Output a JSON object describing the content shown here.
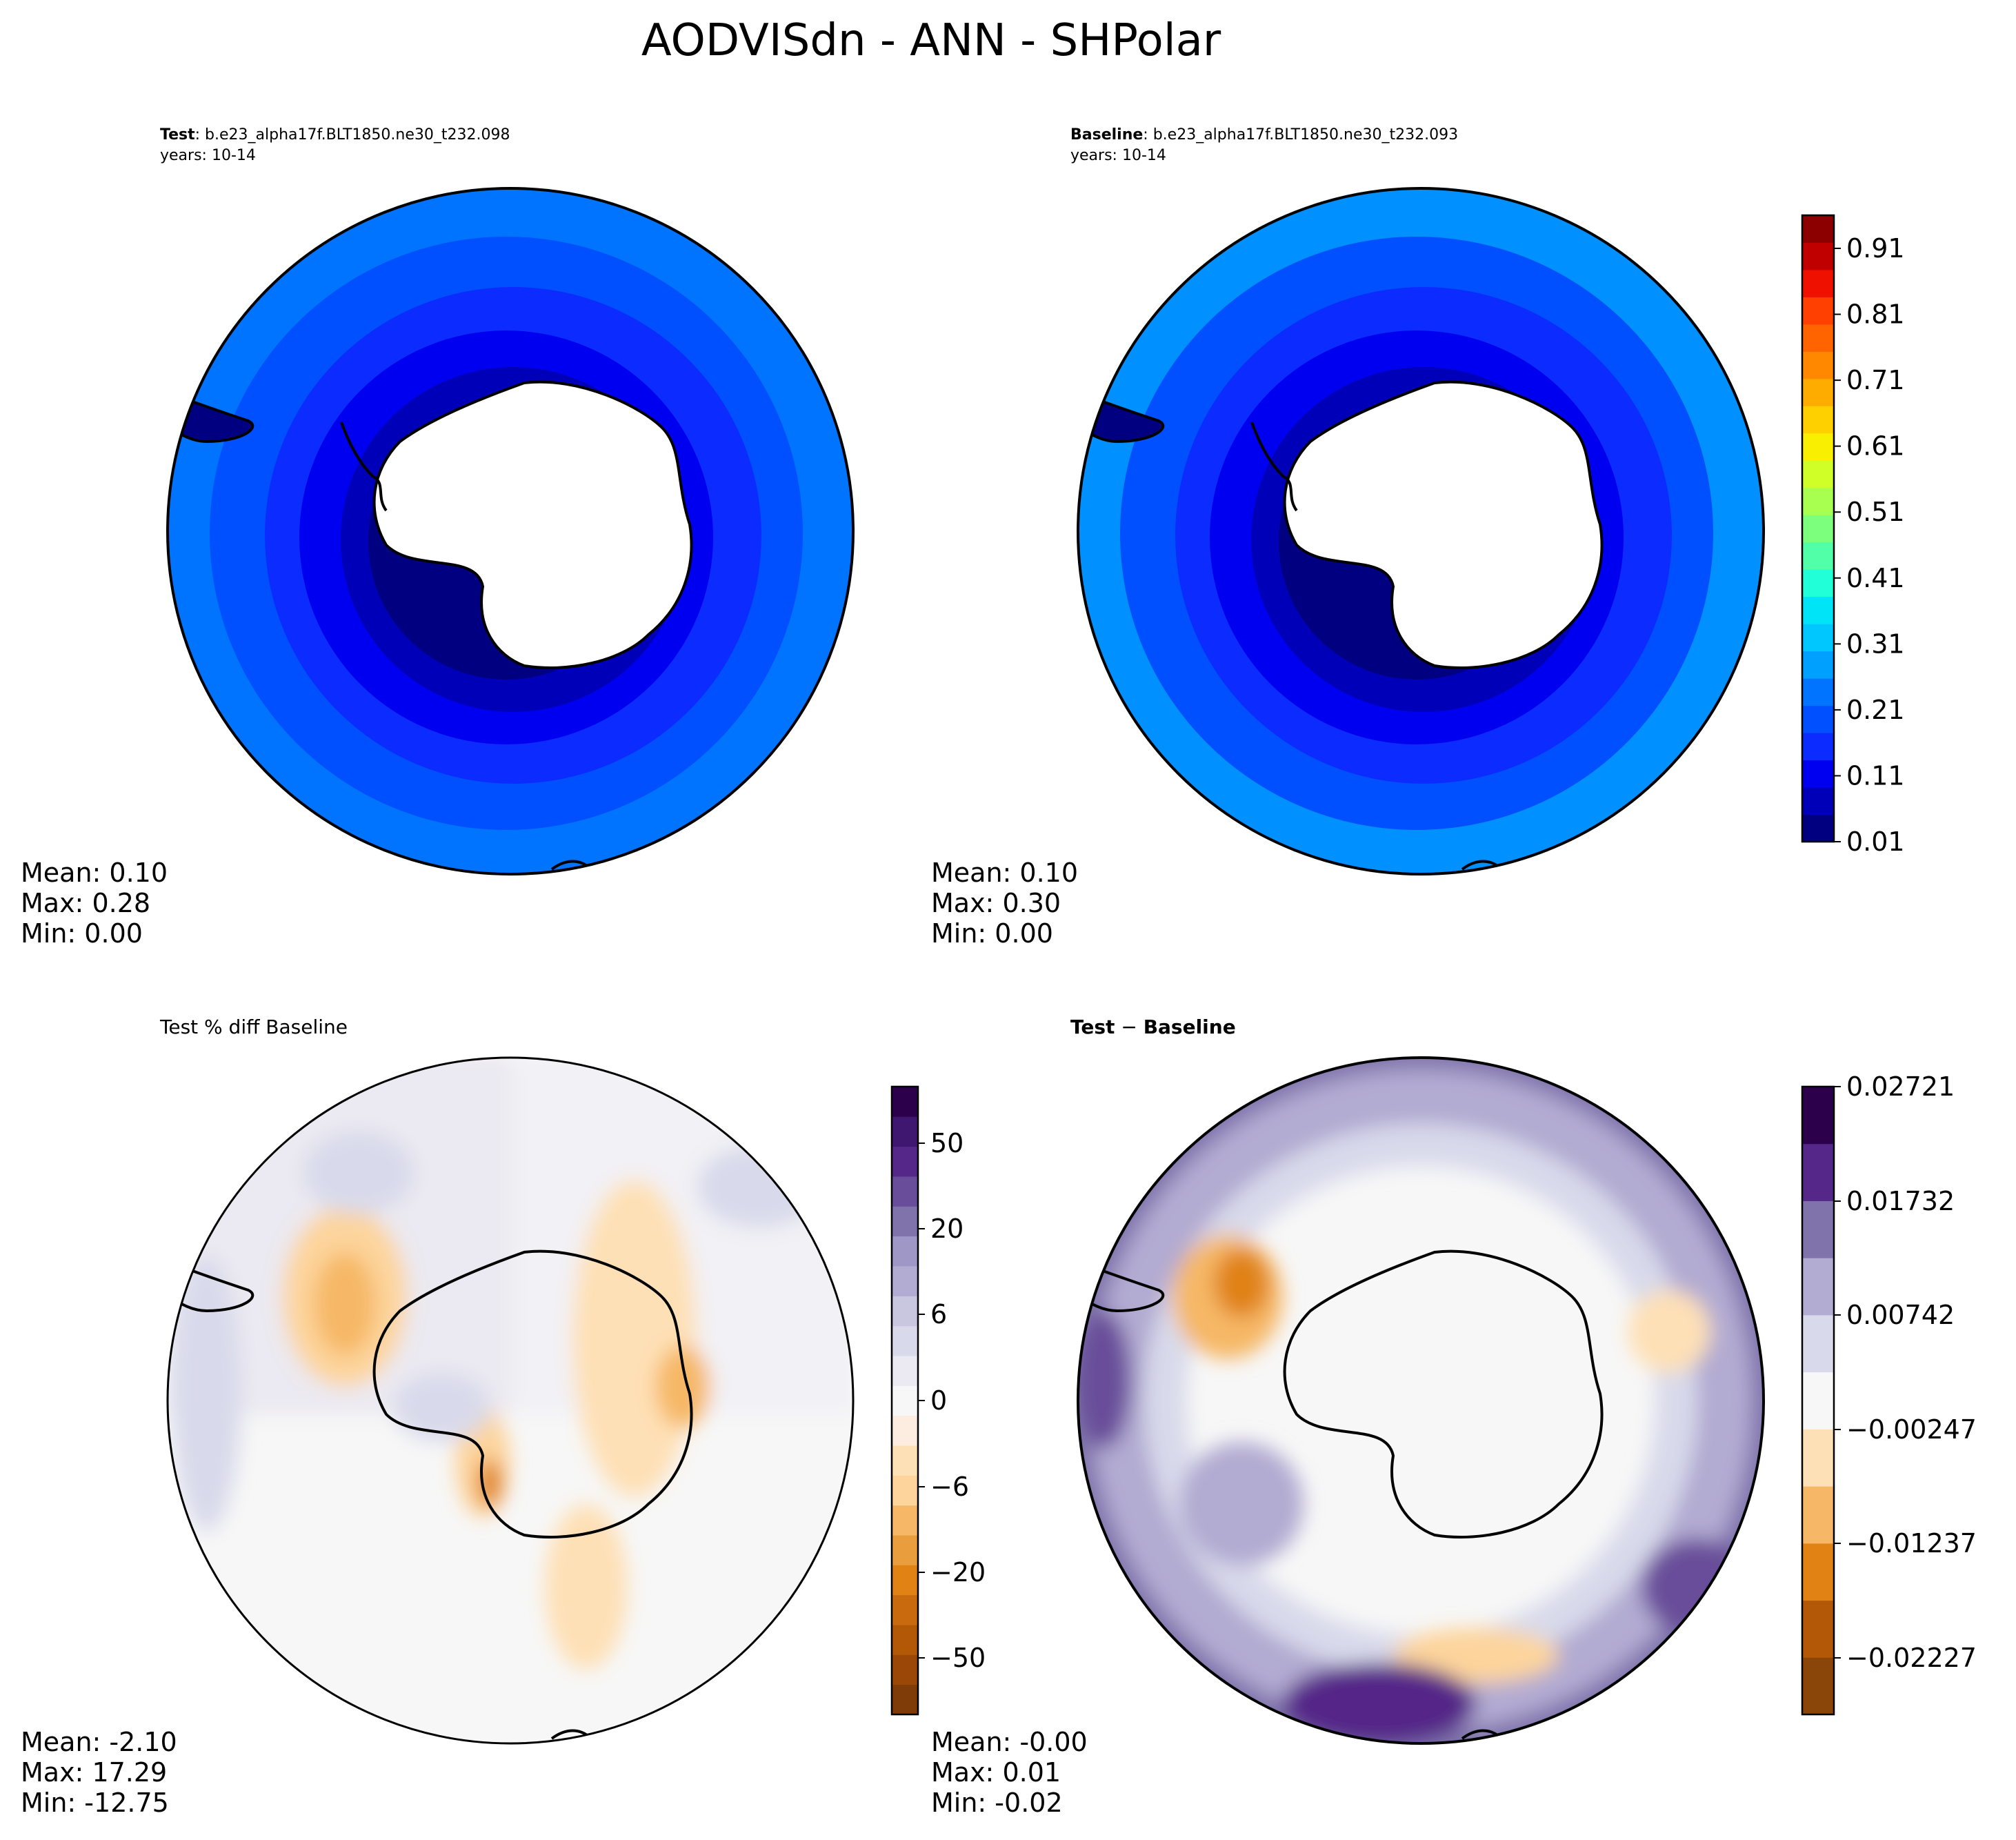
{
  "title": "AODVISdn - ANN - SHPolar",
  "panels": {
    "test": {
      "label": "Test",
      "case": ": b.e23_alpha17f.BLT1850.ne30_t232.098",
      "years": "years: 10-14",
      "stats": {
        "mean": "Mean:  0.10",
        "max": "Max:  0.28",
        "min": "Min:  0.00"
      }
    },
    "baseline": {
      "label": "Baseline",
      "case": ": b.e23_alpha17f.BLT1850.ne30_t232.093",
      "years": "years: 10-14",
      "stats": {
        "mean": "Mean:  0.10",
        "max": "Max:  0.30",
        "min": "Min:  0.00"
      }
    },
    "pctdiff": {
      "title": "Test % diff Baseline",
      "stats": {
        "mean": "Mean: -2.10",
        "max": "Max: 17.29",
        "min": "Min: -12.75"
      }
    },
    "diff": {
      "title_test": "Test",
      "title_sep": " − ",
      "title_base": "Baseline",
      "stats": {
        "mean": "Mean: -0.00",
        "max": "Max:  0.01",
        "min": "Min: -0.02"
      }
    }
  },
  "chart_data": [
    {
      "type": "heatmap",
      "name": "test",
      "projection": "south-polar-stereographic",
      "description_levels": [
        0.01,
        0.06,
        0.11,
        0.16,
        0.21,
        0.26
      ],
      "ring_values_from_pole": [
        0.03,
        0.06,
        0.09,
        0.12,
        0.16,
        0.2
      ],
      "colors": [
        "#000080",
        "#0000b8",
        "#0000f0",
        "#0c2cff",
        "#0050ff",
        "#0074ff"
      ]
    },
    {
      "type": "heatmap",
      "name": "baseline",
      "projection": "south-polar-stereographic",
      "ring_values_from_pole": [
        0.03,
        0.06,
        0.09,
        0.12,
        0.16,
        0.22
      ],
      "colors": [
        "#000080",
        "#0000b8",
        "#0000f0",
        "#0c2cff",
        "#0050ff",
        "#0090ff"
      ]
    },
    {
      "type": "heatmap",
      "name": "pctdiff",
      "colorbar": {
        "ticks": [
          "50",
          "20",
          "6",
          "0",
          "−6",
          "−20",
          "−50"
        ],
        "colors": [
          "#7f3b08",
          "#9a4708",
          "#b35806",
          "#c86a0d",
          "#e08214",
          "#ea9d3c",
          "#f6b866",
          "#fdd49b",
          "#fee0b6",
          "#fdece0",
          "#f7f7f7",
          "#ebe9f1",
          "#d8daeb",
          "#c9c6e0",
          "#b2abd2",
          "#9f98c6",
          "#8073ac",
          "#694d9a",
          "#542788",
          "#3f1670",
          "#2d004b"
        ]
      }
    },
    {
      "type": "heatmap",
      "name": "diff",
      "colorbar": {
        "ticks": [
          "0.02721",
          "0.01732",
          "0.00742",
          "−0.00247",
          "−0.01237",
          "−0.02227"
        ],
        "colors": [
          "#8a4509",
          "#b35806",
          "#e08214",
          "#f6b866",
          "#fee0b6",
          "#f7f7f7",
          "#d8daeb",
          "#b2abd2",
          "#8073ac",
          "#542788",
          "#2d004b"
        ]
      }
    }
  ],
  "colorbar_main": {
    "ticks": [
      "0.91",
      "0.81",
      "0.71",
      "0.61",
      "0.51",
      "0.41",
      "0.31",
      "0.21",
      "0.11",
      "0.01"
    ],
    "colors": [
      "#000080",
      "#0000b8",
      "#0000f0",
      "#0c2cff",
      "#0050ff",
      "#0074ff",
      "#00a0ff",
      "#00c8ff",
      "#00e4f8",
      "#20ffd8",
      "#50ffa8",
      "#7cff7c",
      "#a8ff50",
      "#d0ff28",
      "#f8f000",
      "#ffd000",
      "#ffac00",
      "#ff8800",
      "#ff6400",
      "#ff4000",
      "#f01000",
      "#c00000",
      "#8c0000"
    ]
  }
}
